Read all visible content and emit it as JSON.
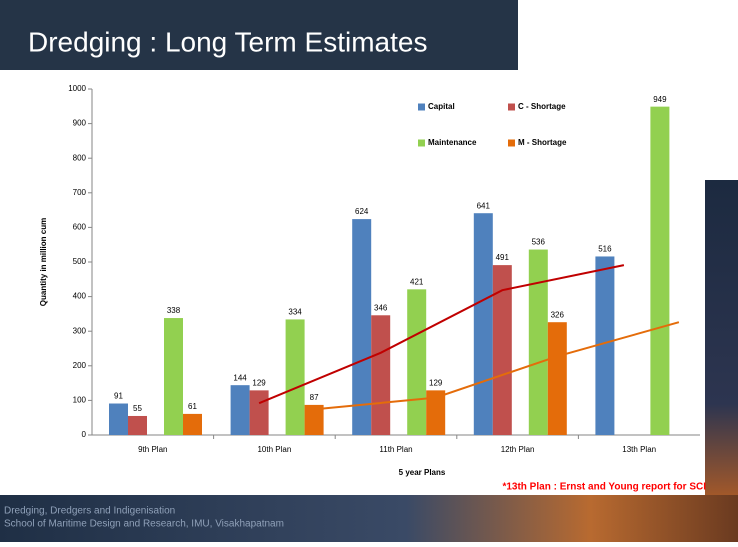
{
  "slide": {
    "title": "Dredging  : Long Term Estimates",
    "footer": [
      "Dredging, Dredgers and Indigenisation",
      "School of Maritime Design and Research, IMU, Visakhapatnam"
    ],
    "note": "*13th Plan : Ernst and Young report for SCI"
  },
  "chart_data": {
    "type": "bar",
    "x_label": "5 year Plans",
    "y_label": "Quantity in million cum",
    "categories": [
      "9th Plan",
      "10th Plan",
      "11th Plan",
      "12th Plan",
      "13th Plan"
    ],
    "series": [
      {
        "name": "Capital",
        "color": "#4f81bd",
        "values": [
          91,
          144,
          624,
          641,
          516
        ]
      },
      {
        "name": "C - Shortage",
        "color": "#c0504d",
        "values": [
          55,
          129,
          346,
          491,
          null
        ],
        "trendline": "moving-average-2",
        "trend_color": "#c00000"
      },
      {
        "name": "Maintenance",
        "color": "#92d050",
        "values": [
          338,
          334,
          421,
          536,
          949
        ]
      },
      {
        "name": "M - Shortage",
        "color": "#e46c0a",
        "values": [
          61,
          87,
          129,
          326,
          null
        ],
        "trendline": "moving-average-2",
        "trend_color": "#e46c0a"
      }
    ],
    "ylim": [
      0,
      1000
    ],
    "yticks": [
      0,
      100,
      200,
      300,
      400,
      500,
      600,
      700,
      800,
      900,
      1000
    ],
    "legend": "top-right"
  }
}
